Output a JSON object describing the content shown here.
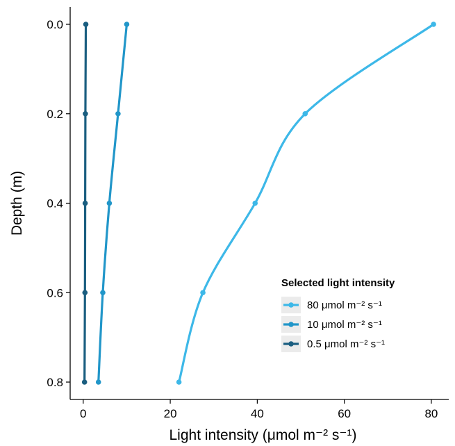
{
  "chart_data": {
    "type": "line",
    "title": "",
    "xlabel": "Light intensity (μmol m⁻² s⁻¹)",
    "ylabel": "Depth (m)",
    "xlim": [
      -3,
      84
    ],
    "ylim": [
      0.8,
      0.0
    ],
    "y_reversed": true,
    "x_ticks": [
      0,
      20,
      40,
      60,
      80
    ],
    "x_tick_labels": [
      "0",
      "20",
      "40",
      "60",
      "80"
    ],
    "y_ticks": [
      0.0,
      0.2,
      0.4,
      0.6,
      0.8
    ],
    "y_tick_labels": [
      "0.0",
      "0.2",
      "0.4",
      "0.6",
      "0.8"
    ],
    "grid": false,
    "legend": {
      "title": "Selected light intensity",
      "position": "right"
    },
    "depths": [
      0.0,
      0.2,
      0.4,
      0.6,
      0.8
    ],
    "series": [
      {
        "name": "80 μmol m⁻² s⁻¹",
        "color": "#3db8e8",
        "x": [
          80.5,
          51.0,
          39.5,
          27.5,
          22.0
        ]
      },
      {
        "name": "10 μmol m⁻² s⁻¹",
        "color": "#2196c9",
        "x": [
          10.0,
          8.0,
          6.0,
          4.5,
          3.5
        ]
      },
      {
        "name": "0.5 μmol m⁻² s⁻¹",
        "color": "#1a5e80",
        "x": [
          0.6,
          0.5,
          0.45,
          0.4,
          0.3
        ]
      }
    ]
  }
}
